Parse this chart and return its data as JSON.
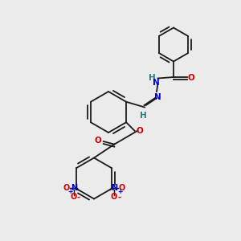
{
  "bg_color": "#ebebeb",
  "bond_color": "#1a1a1a",
  "atom_colors": {
    "O": "#cc0000",
    "N": "#0000cc",
    "N_hydrazone": "#2a7a7a",
    "H": "#2a7a7a"
  },
  "font_size": 7.5,
  "bond_lw": 1.3
}
